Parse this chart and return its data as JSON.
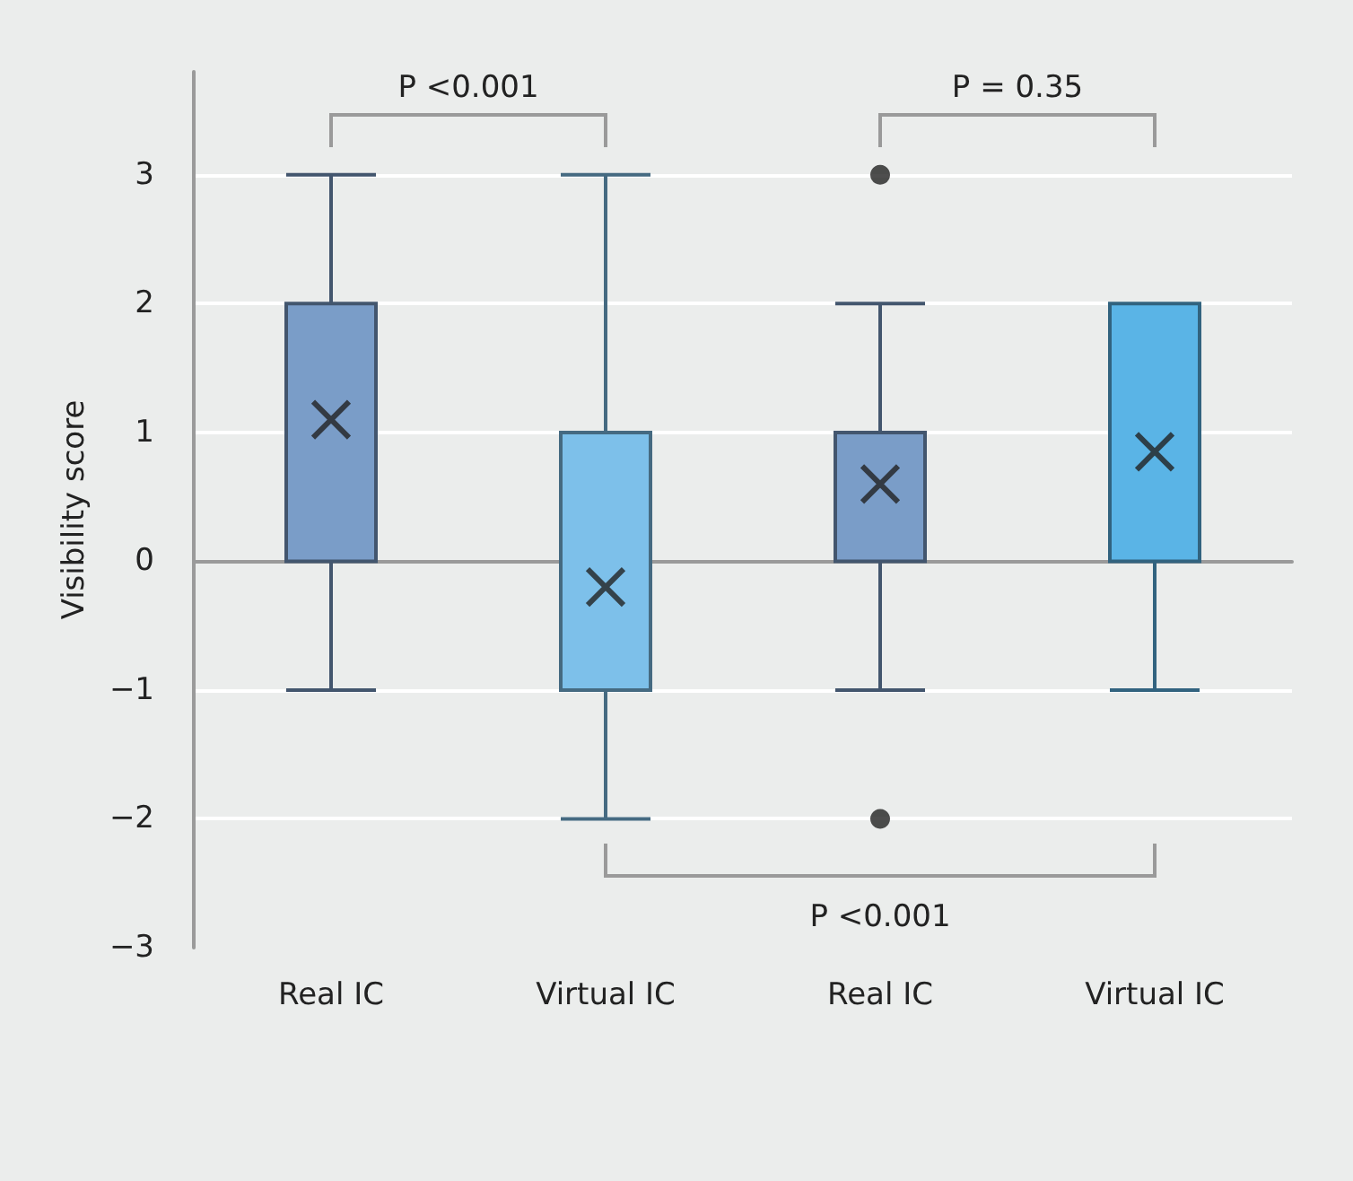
{
  "chart_data": {
    "type": "box",
    "ylabel": "Visibility score",
    "categories": [
      "Real IC",
      "Virtual IC",
      "Real IC",
      "Virtual IC"
    ],
    "boxes": [
      {
        "low": -1,
        "q1": 0,
        "median": 2,
        "q3": 2,
        "high": 3,
        "mean": 1.1
      },
      {
        "low": -2,
        "q1": -1,
        "median": 1,
        "q3": 1,
        "high": 3,
        "mean": -0.2
      },
      {
        "low": -1,
        "q1": 0,
        "median": 1,
        "q3": 1,
        "high": 2,
        "mean": 0.6,
        "outliers": [
          3,
          -2
        ]
      },
      {
        "low": -1,
        "q1": 0,
        "median": 0,
        "q3": 2,
        "high": 2,
        "mean": 0.85
      }
    ],
    "colors": [
      "#7a9dc8",
      "#7dc0ea",
      "#7a9dc8",
      "#5ab4e6"
    ],
    "ylim": [
      -3,
      3.8
    ],
    "yticks": [
      {
        "value": -3,
        "label": "−3"
      },
      {
        "value": -2,
        "label": "−2"
      },
      {
        "value": -1,
        "label": "−1"
      },
      0,
      1,
      2,
      3
    ],
    "grid": "y",
    "annotations": [
      "P <0.001",
      "P = 0.35",
      "P <0.001"
    ]
  }
}
